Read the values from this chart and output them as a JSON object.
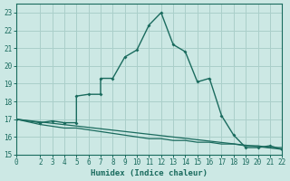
{
  "xlabel": "Humidex (Indice chaleur)",
  "bg_color": "#cce8e4",
  "grid_color": "#aacfca",
  "line_color": "#1a6b5e",
  "xlim": [
    0,
    22
  ],
  "ylim": [
    15,
    23.5
  ],
  "xticks": [
    0,
    2,
    3,
    4,
    5,
    6,
    7,
    8,
    9,
    10,
    11,
    12,
    13,
    14,
    15,
    16,
    17,
    18,
    19,
    20,
    21,
    22
  ],
  "yticks": [
    15,
    16,
    17,
    18,
    19,
    20,
    21,
    22,
    23
  ],
  "line1_x": [
    0,
    2,
    3,
    4,
    5,
    5,
    6,
    7,
    7,
    8,
    9,
    10,
    11,
    12,
    13,
    14,
    15,
    16,
    17,
    18,
    19,
    20,
    21,
    22
  ],
  "line1_y": [
    17,
    16.8,
    16.9,
    16.8,
    16.8,
    18.3,
    18.4,
    18.4,
    19.3,
    19.3,
    20.5,
    20.9,
    22.3,
    23.0,
    21.2,
    20.8,
    19.1,
    19.3,
    17.2,
    16.1,
    15.4,
    15.4,
    15.5,
    15.3
  ],
  "line2_x": [
    0,
    22
  ],
  "line2_y": [
    17,
    15.3
  ],
  "line3_x": [
    0,
    2,
    3,
    4,
    5,
    6,
    7,
    8,
    9,
    10,
    11,
    12,
    13,
    14,
    15,
    16,
    17,
    18,
    19,
    20,
    21,
    22
  ],
  "line3_y": [
    17.0,
    16.7,
    16.6,
    16.5,
    16.5,
    16.4,
    16.3,
    16.2,
    16.1,
    16.0,
    15.9,
    15.9,
    15.8,
    15.8,
    15.7,
    15.7,
    15.6,
    15.6,
    15.5,
    15.5,
    15.4,
    15.4
  ]
}
